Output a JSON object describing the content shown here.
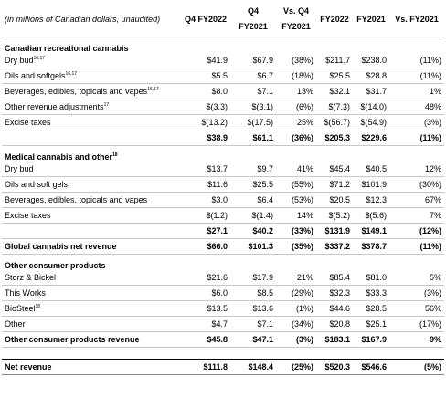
{
  "header": {
    "caption": "(in millions of Canadian dollars, unaudited)",
    "columns": [
      "Q4 FY2022",
      "Q4 FY2021",
      "Vs. Q4 FY2021",
      "FY2022",
      "FY2021",
      "Vs. FY2021"
    ]
  },
  "table": {
    "rows": [
      {
        "kind": "section",
        "label": "Canadian recreational cannabis"
      },
      {
        "kind": "item",
        "label": "Dry bud",
        "note": "16,17",
        "cells": [
          "$41.9",
          "$67.9",
          "(38%)",
          "$211.7",
          "$238.0",
          "(11%)"
        ]
      },
      {
        "kind": "item",
        "label": "Oils and softgels",
        "note": "16,17",
        "cells": [
          "$5.5",
          "$6.7",
          "(18%)",
          "$25.5",
          "$28.8",
          "(11%)"
        ]
      },
      {
        "kind": "item",
        "label": "Beverages, edibles, topicals and vapes",
        "note": "16,17",
        "cells": [
          "$8.0",
          "$7.1",
          "13%",
          "$32.1",
          "$31.7",
          "1%"
        ]
      },
      {
        "kind": "item",
        "label": "Other revenue adjustments",
        "note": "17",
        "cells": [
          "$(3.3)",
          "$(3.1)",
          "(6%)",
          "$(7.3)",
          "$(14.0)",
          "48%"
        ]
      },
      {
        "kind": "item",
        "label": "Excise taxes",
        "cells": [
          "$(13.2)",
          "$(17.5)",
          "25%",
          "$(56.7)",
          "$(54.9)",
          "(3%)"
        ]
      },
      {
        "kind": "subtotal",
        "cells": [
          "$38.9",
          "$61.1",
          "(36%)",
          "$205.3",
          "$229.6",
          "(11%)"
        ]
      },
      {
        "kind": "section",
        "label": "Medical cannabis and other",
        "note": "18"
      },
      {
        "kind": "item",
        "label": "Dry bud",
        "cells": [
          "$13.7",
          "$9.7",
          "41%",
          "$45.4",
          "$40.5",
          "12%"
        ]
      },
      {
        "kind": "item",
        "label": "Oils and soft gels",
        "cells": [
          "$11.6",
          "$25.5",
          "(55%)",
          "$71.2",
          "$101.9",
          "(30%)"
        ]
      },
      {
        "kind": "item",
        "label": "Beverages, edibles, topicals and vapes",
        "cells": [
          "$3.0",
          "$6.4",
          "(53%)",
          "$20.5",
          "$12.3",
          "67%"
        ]
      },
      {
        "kind": "item",
        "label": "Excise taxes",
        "cells": [
          "$(1.2)",
          "$(1.4)",
          "14%",
          "$(5.2)",
          "$(5.6)",
          "7%"
        ]
      },
      {
        "kind": "subtotal",
        "cells": [
          "$27.1",
          "$40.2",
          "(33%)",
          "$131.9",
          "$149.1",
          "(12%)"
        ]
      },
      {
        "kind": "subtotal",
        "label": "Global cannabis net revenue",
        "cells": [
          "$66.0",
          "$101.3",
          "(35%)",
          "$337.2",
          "$378.7",
          "(11%)"
        ]
      },
      {
        "kind": "section",
        "label": "Other consumer products"
      },
      {
        "kind": "item",
        "label": "Storz & Bickel",
        "cells": [
          "$21.6",
          "$17.9",
          "21%",
          "$85.4",
          "$81.0",
          "5%"
        ]
      },
      {
        "kind": "item",
        "label": "This Works",
        "cells": [
          "$6.0",
          "$8.5",
          "(29%)",
          "$32.3",
          "$33.3",
          "(3%)"
        ]
      },
      {
        "kind": "item",
        "label": "BioSteel",
        "note": "18",
        "cells": [
          "$13.5",
          "$13.6",
          "(1%)",
          "$44.6",
          "$28.5",
          "56%"
        ]
      },
      {
        "kind": "item",
        "label": "Other",
        "cells": [
          "$4.7",
          "$7.1",
          "(34%)",
          "$20.8",
          "$25.1",
          "(17%)"
        ]
      },
      {
        "kind": "subtotal",
        "label": "Other consumer products revenue",
        "cells": [
          "$45.8",
          "$47.1",
          "(3%)",
          "$183.1",
          "$167.9",
          "9%"
        ]
      },
      {
        "kind": "total",
        "label": "Net revenue",
        "cells": [
          "$111.8",
          "$148.4",
          "(25%)",
          "$520.3",
          "$546.6",
          "(5%)"
        ]
      }
    ]
  }
}
